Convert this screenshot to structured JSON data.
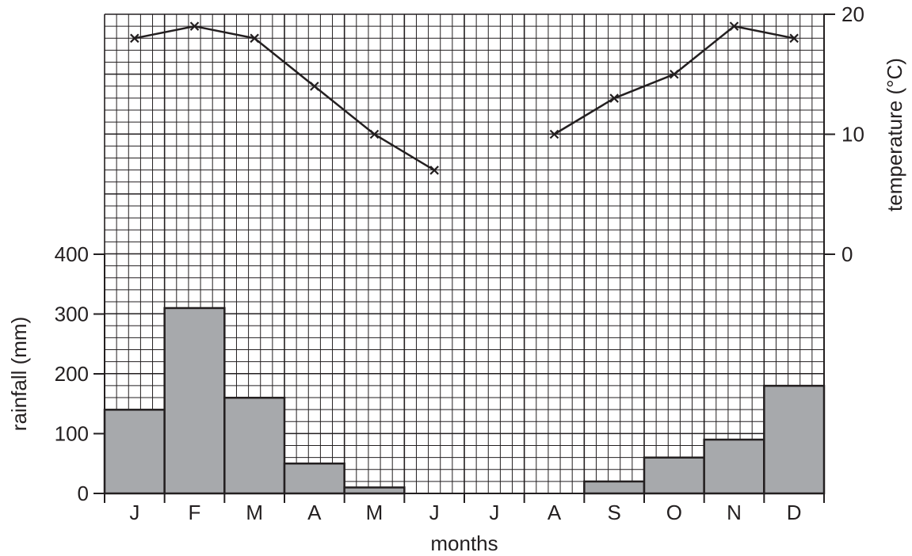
{
  "chart_data": {
    "type": "bar",
    "categories": [
      "J",
      "F",
      "M",
      "A",
      "M",
      "J",
      "J",
      "A",
      "S",
      "O",
      "N",
      "D"
    ],
    "series": [
      {
        "values": [
          140,
          310,
          160,
          50,
          10,
          0,
          0,
          0,
          20,
          60,
          90,
          180
        ],
        "axis": "left",
        "style": "bar"
      },
      {
        "values": [
          18,
          19,
          18,
          14,
          10,
          7,
          null,
          10,
          13,
          15,
          19,
          18
        ],
        "axis": "right",
        "style": "line-with-x-markers"
      }
    ],
    "xlabel": "months",
    "ylabel": "rainfall (mm)",
    "y2label": "temperature (°C)",
    "y_ticks": [
      "0",
      "100",
      "200",
      "300",
      "400"
    ],
    "y2_ticks": [
      "0",
      "10",
      "20"
    ],
    "ylim": [
      0,
      400
    ],
    "y2lim": [
      0,
      20
    ],
    "grid": true,
    "colors": {
      "bar_fill": "#a7a9ac",
      "ink": "#231f20"
    }
  }
}
